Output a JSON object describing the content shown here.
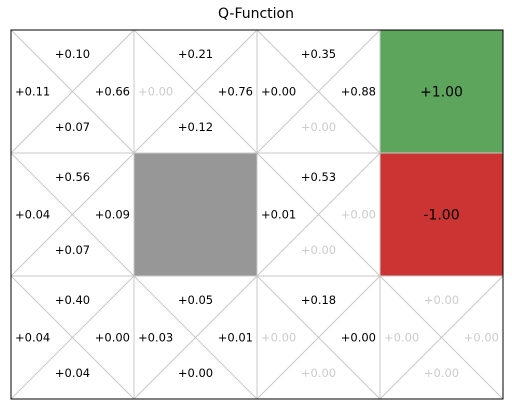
{
  "title": "Q-Function",
  "colors": {
    "terminal_positive": "#5da55d",
    "terminal_negative": "#cc3333",
    "wall": "#979797",
    "divider": "#c8c8c8",
    "border": "#000000",
    "active_text": "#000000",
    "zero_text": "#cccccc"
  },
  "grid": {
    "rows": 3,
    "cols": 4,
    "cells": [
      {
        "row": 0,
        "col": 0,
        "type": "state",
        "q": {
          "up": "+0.10",
          "left": "+0.11",
          "right": "+0.66",
          "down": "+0.07"
        },
        "zero": {
          "up": false,
          "left": false,
          "right": false,
          "down": false
        }
      },
      {
        "row": 0,
        "col": 1,
        "type": "state",
        "q": {
          "up": "+0.21",
          "left": "+0.00",
          "right": "+0.76",
          "down": "+0.12"
        },
        "zero": {
          "up": false,
          "left": true,
          "right": false,
          "down": false
        }
      },
      {
        "row": 0,
        "col": 2,
        "type": "state",
        "q": {
          "up": "+0.35",
          "left": "+0.00",
          "right": "+0.88",
          "down": "+0.00"
        },
        "zero": {
          "up": false,
          "left": false,
          "right": false,
          "down": true
        }
      },
      {
        "row": 0,
        "col": 3,
        "type": "terminal",
        "value": "+1.00",
        "color": "terminal_positive"
      },
      {
        "row": 1,
        "col": 0,
        "type": "state",
        "q": {
          "up": "+0.56",
          "left": "+0.04",
          "right": "+0.09",
          "down": "+0.07"
        },
        "zero": {
          "up": false,
          "left": false,
          "right": false,
          "down": false
        }
      },
      {
        "row": 1,
        "col": 1,
        "type": "wall"
      },
      {
        "row": 1,
        "col": 2,
        "type": "state",
        "q": {
          "up": "+0.53",
          "left": "+0.01",
          "right": "+0.00",
          "down": "+0.00"
        },
        "zero": {
          "up": false,
          "left": false,
          "right": true,
          "down": true
        }
      },
      {
        "row": 1,
        "col": 3,
        "type": "terminal",
        "value": "-1.00",
        "color": "terminal_negative"
      },
      {
        "row": 2,
        "col": 0,
        "type": "state",
        "q": {
          "up": "+0.40",
          "left": "+0.04",
          "right": "+0.00",
          "down": "+0.04"
        },
        "zero": {
          "up": false,
          "left": false,
          "right": false,
          "down": false
        }
      },
      {
        "row": 2,
        "col": 1,
        "type": "state",
        "q": {
          "up": "+0.05",
          "left": "+0.03",
          "right": "+0.01",
          "down": "+0.00"
        },
        "zero": {
          "up": false,
          "left": false,
          "right": false,
          "down": false
        }
      },
      {
        "row": 2,
        "col": 2,
        "type": "state",
        "q": {
          "up": "+0.18",
          "left": "+0.00",
          "right": "+0.00",
          "down": "+0.00"
        },
        "zero": {
          "up": false,
          "left": true,
          "right": false,
          "down": true
        }
      },
      {
        "row": 2,
        "col": 3,
        "type": "state",
        "q": {
          "up": "+0.00",
          "left": "+0.00",
          "right": "+0.00",
          "down": "+0.00"
        },
        "zero": {
          "up": true,
          "left": true,
          "right": true,
          "down": true
        }
      }
    ]
  }
}
